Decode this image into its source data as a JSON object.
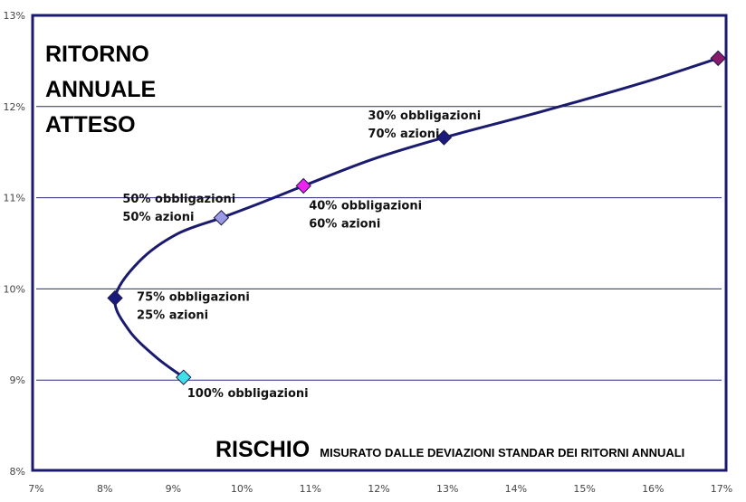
{
  "chart_data": {
    "type": "line",
    "ylabel_lines": [
      "RITORNO",
      "ANNUALE",
      "ATTESO"
    ],
    "xlabel": "RISCHIO",
    "xlabel_sub": "MISURATO DALLE DEVIAZIONI STANDAR DEI RITORNI ANNUALI",
    "xlim": [
      7,
      17
    ],
    "ylim": [
      8,
      13
    ],
    "x_ticks": [
      7,
      8,
      9,
      10,
      11,
      12,
      13,
      14,
      15,
      16,
      17
    ],
    "y_ticks": [
      8,
      9,
      10,
      11,
      12,
      13
    ],
    "x_tick_labels": [
      "7%",
      "8%",
      "9%",
      "10%",
      "11%",
      "12%",
      "13%",
      "14%",
      "15%",
      "16%",
      "17%"
    ],
    "y_tick_labels": [
      "8%",
      "9%",
      "10%",
      "11%",
      "12%",
      "13%"
    ],
    "grid": {
      "horizontal": true,
      "vertical": false
    },
    "curve": [
      {
        "x": 9.15,
        "y": 9.03
      },
      {
        "x": 8.75,
        "y": 9.25
      },
      {
        "x": 8.35,
        "y": 9.55
      },
      {
        "x": 8.15,
        "y": 9.9
      },
      {
        "x": 8.5,
        "y": 10.3
      },
      {
        "x": 9.05,
        "y": 10.6
      },
      {
        "x": 9.7,
        "y": 10.78
      },
      {
        "x": 10.3,
        "y": 10.95
      },
      {
        "x": 10.9,
        "y": 11.13
      },
      {
        "x": 11.9,
        "y": 11.42
      },
      {
        "x": 12.95,
        "y": 11.66
      },
      {
        "x": 14.4,
        "y": 11.95
      },
      {
        "x": 15.8,
        "y": 12.25
      },
      {
        "x": 16.95,
        "y": 12.53
      }
    ],
    "points": [
      {
        "x": 9.15,
        "y": 9.03,
        "color": "#40e0e8",
        "labels": [
          "100% obbligazioni"
        ]
      },
      {
        "x": 8.15,
        "y": 9.9,
        "color": "#1a1a7a",
        "labels": [
          "75% obbligazioni",
          "25% azioni"
        ]
      },
      {
        "x": 9.7,
        "y": 10.78,
        "color": "#9a9ae6",
        "labels": [
          "50% obbligazioni",
          "50% azioni"
        ]
      },
      {
        "x": 10.9,
        "y": 11.13,
        "color": "#ee22ee",
        "labels": [
          "40% obbligazioni",
          "60% azioni"
        ]
      },
      {
        "x": 12.95,
        "y": 11.66,
        "color": "#1a1a7a",
        "labels": [
          "30% obbligazioni",
          "70% azioni"
        ]
      },
      {
        "x": 16.95,
        "y": 12.53,
        "color": "#8a1a6a",
        "labels": []
      }
    ],
    "colors": {
      "frame": "#1a1a6e",
      "curve": "#1a1a6e",
      "grid": "#2a2a7a"
    }
  }
}
